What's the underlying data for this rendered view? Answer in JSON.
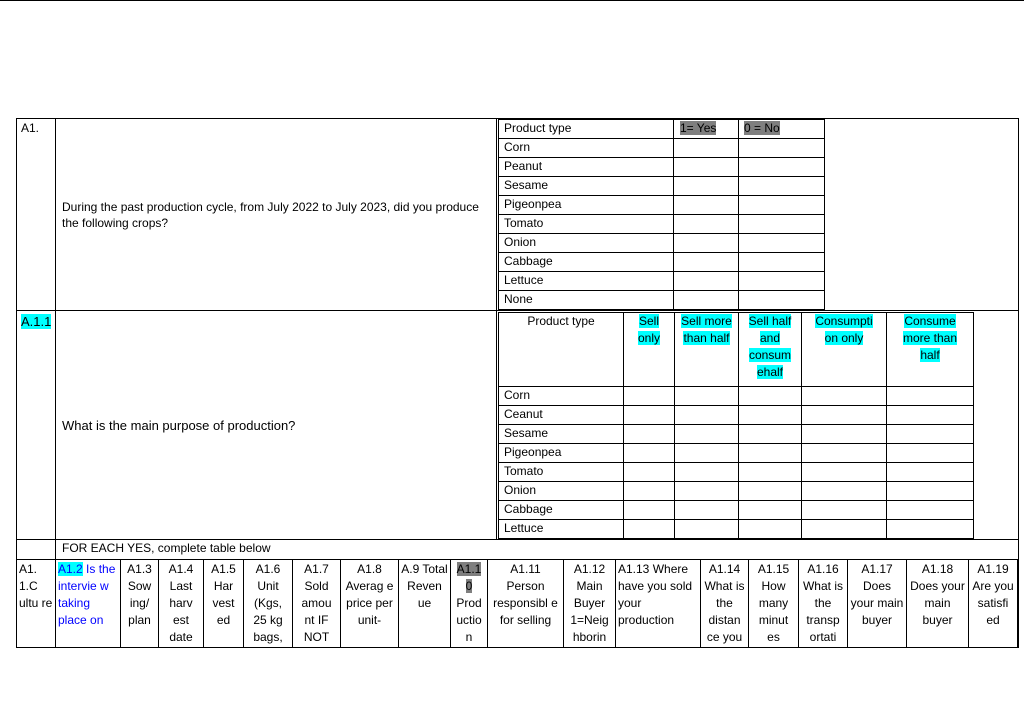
{
  "a1": {
    "id": "A1.",
    "question": "During the past production cycle, from July 2022 to July 2023, did you produce the following crops?",
    "table_header": [
      "Product type",
      "1= Yes",
      "0 = No"
    ],
    "crops": [
      "Corn",
      "Peanut",
      "Sesame",
      "Pigeonpea",
      "Tomato",
      "Onion",
      "Cabbage",
      "Lettuce",
      "None"
    ]
  },
  "a11": {
    "id": "A.1.1",
    "question": "What is the main purpose of production?",
    "table_header": [
      "Product type",
      "Sell only",
      "Sell more than half",
      "Sell half and consum ehalf",
      "Consumpti on only",
      "Consume more than half"
    ],
    "crops": [
      "Corn",
      "Ceanut",
      "Sesame",
      "Pigeonpea",
      "Tomato",
      "Onion",
      "Cabbage",
      "Lettuce"
    ]
  },
  "instruction": "FOR EACH YES, complete table below",
  "columns": [
    "A1. 1.C ultu re",
    "A1.2 Is the intervie w taking place on",
    "A1.3 Sow ing/ plan",
    "A1.4 Last harv est date",
    "A1.5 Har vest ed",
    "A1.6 Unit (Kgs, 25 kg bags,",
    "A1.7 Sold amou nt IF NOT",
    "A1.8 Averag e price per unit-",
    "A.9 Total Reven ue",
    "A1.1 0 Prod uctio n",
    "A1.11 Person responsibl e for selling",
    "A1.12 Main Buyer 1=Neig hborin",
    "A1.13 Where have you sold your production",
    "A1.14 What is the distan ce you",
    "A1.15 How many minut es",
    "A1.16 What is the transp ortati",
    "A1.17 Does your main buyer",
    "A1.18 Does your main buyer",
    "A1.19 Are you satisfi ed"
  ],
  "colors": {
    "highlight_gray": "#7f7f7f",
    "highlight_cyan": "#00ffff",
    "link_blue": "#0000ff"
  }
}
